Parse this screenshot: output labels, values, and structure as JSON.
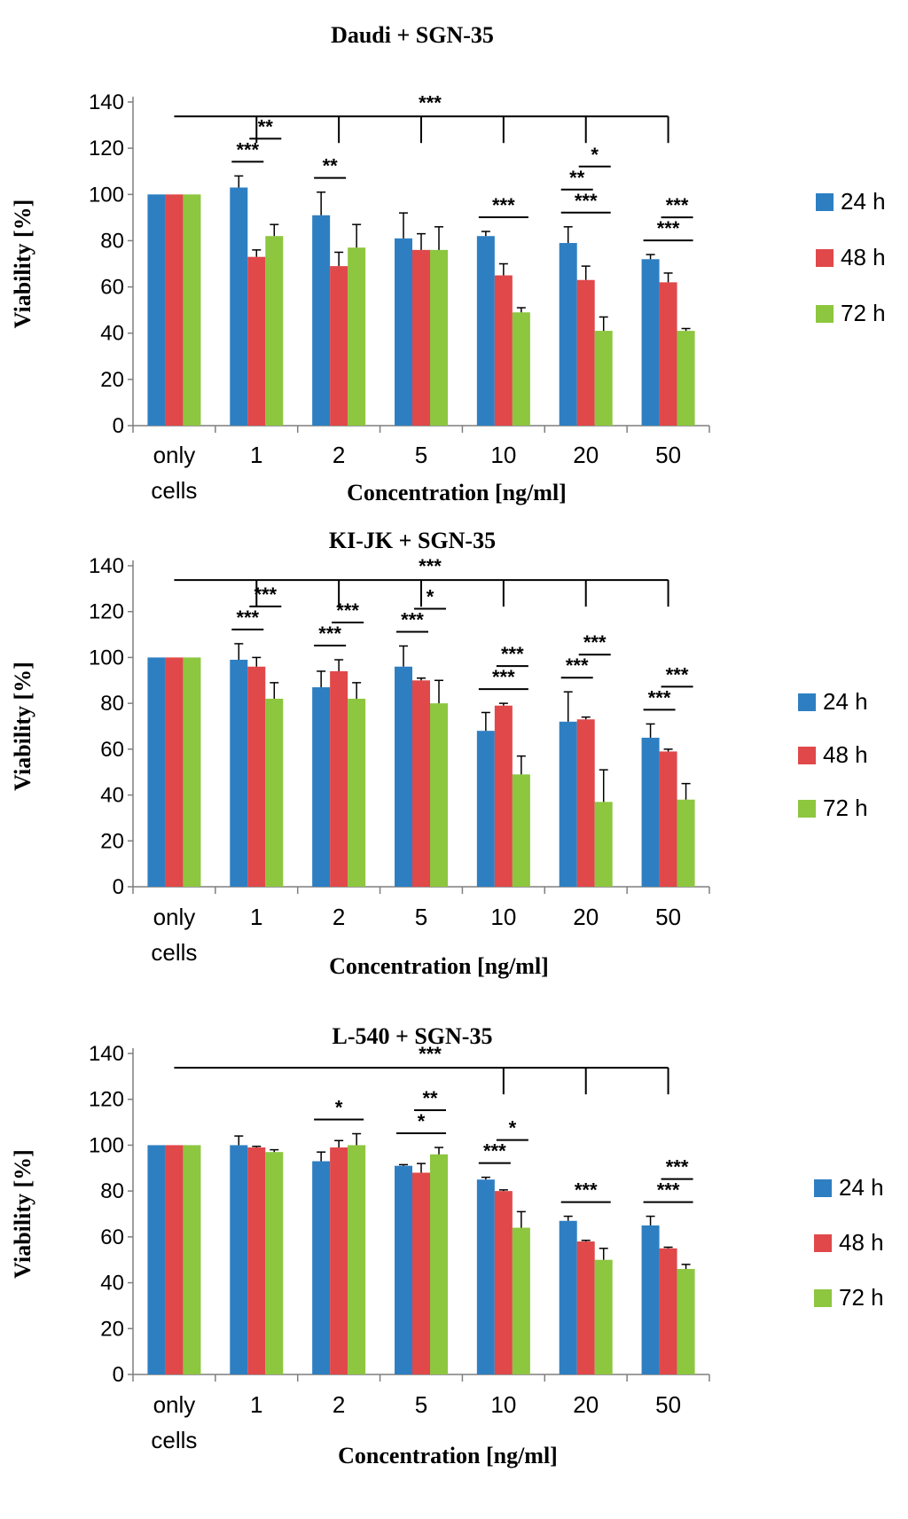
{
  "chart_data": [
    {
      "type": "bar",
      "title": "Daudi + SGN-35",
      "ylabel": "Viability [%]",
      "xlabel": "Concentration [ng/ml]",
      "ylim": [
        0,
        140
      ],
      "yticks": [
        "0",
        "20",
        "40",
        "60",
        "80",
        "100",
        "120",
        "140"
      ],
      "categories": [
        [
          "only",
          "cells"
        ],
        [
          "1"
        ],
        [
          "2"
        ],
        [
          "5"
        ],
        [
          "10"
        ],
        [
          "20"
        ],
        [
          "50"
        ]
      ],
      "series": [
        {
          "name": "24 h",
          "color": "#2e7fc2",
          "values": [
            100,
            103,
            91,
            81,
            82,
            79,
            72
          ],
          "errors": [
            0,
            5,
            10,
            11,
            2,
            7,
            2
          ]
        },
        {
          "name": "48 h",
          "color": "#e0484a",
          "values": [
            100,
            73,
            69,
            76,
            65,
            63,
            62
          ],
          "errors": [
            0,
            3,
            6,
            7,
            5,
            6,
            4
          ]
        },
        {
          "name": "72 h",
          "color": "#8dc63f",
          "values": [
            100,
            82,
            77,
            76,
            49,
            41,
            41
          ],
          "errors": [
            0,
            5,
            10,
            10,
            2,
            6,
            1
          ]
        }
      ],
      "annotations": [
        {
          "text": "***",
          "desc": "overall vs only cells"
        },
        {
          "text": "***",
          "cat": "1",
          "pair": "24h-48h"
        },
        {
          "text": "**",
          "cat": "1",
          "pair": "48h-72h"
        },
        {
          "text": "**",
          "cat": "2",
          "pair": "24h-48h"
        },
        {
          "text": "***",
          "cat": "10",
          "pair": "24h-72h"
        },
        {
          "text": "***",
          "cat": "20",
          "pair": "24h-72h"
        },
        {
          "text": "**",
          "cat": "20",
          "pair": "24h-48h"
        },
        {
          "text": "*",
          "cat": "20",
          "pair": "48h-72h"
        },
        {
          "text": "***",
          "cat": "50",
          "pair": "24h-72h"
        },
        {
          "text": "***",
          "cat": "50",
          "pair": "48h-72h"
        }
      ]
    },
    {
      "type": "bar",
      "title": "KI-JK + SGN-35",
      "ylabel": "Viability [%]",
      "xlabel": "Concentration [ng/ml]",
      "ylim": [
        0,
        140
      ],
      "yticks": [
        "0",
        "20",
        "40",
        "60",
        "80",
        "100",
        "120",
        "140"
      ],
      "categories": [
        [
          "only",
          "cells"
        ],
        [
          "1"
        ],
        [
          "2"
        ],
        [
          "5"
        ],
        [
          "10"
        ],
        [
          "20"
        ],
        [
          "50"
        ]
      ],
      "series": [
        {
          "name": "24 h",
          "color": "#2e7fc2",
          "values": [
            100,
            99,
            87,
            96,
            68,
            72,
            65
          ],
          "errors": [
            0,
            7,
            7,
            9,
            8,
            13,
            6
          ]
        },
        {
          "name": "48 h",
          "color": "#e0484a",
          "values": [
            100,
            96,
            94,
            90,
            79,
            73,
            59
          ],
          "errors": [
            0,
            4,
            5,
            1,
            1,
            1,
            1
          ]
        },
        {
          "name": "72 h",
          "color": "#8dc63f",
          "values": [
            100,
            82,
            82,
            80,
            49,
            37,
            38
          ],
          "errors": [
            0,
            7,
            7,
            10,
            8,
            14,
            7
          ]
        }
      ],
      "annotations": [
        {
          "text": "***",
          "desc": "overall vs only cells"
        },
        {
          "text": "***",
          "cat": "1",
          "pair": "24h-48h"
        },
        {
          "text": "***",
          "cat": "1",
          "pair": "48h-72h"
        },
        {
          "text": "***",
          "cat": "2",
          "pair": "24h-48h"
        },
        {
          "text": "***",
          "cat": "2",
          "pair": "48h-72h"
        },
        {
          "text": "***",
          "cat": "5",
          "pair": "24h-48h"
        },
        {
          "text": "*",
          "cat": "5",
          "pair": "48h-72h"
        },
        {
          "text": "***",
          "cat": "10",
          "pair": "24h-72h"
        },
        {
          "text": "***",
          "cat": "10",
          "pair": "48h-72h"
        },
        {
          "text": "***",
          "cat": "20",
          "pair": "24h-48h"
        },
        {
          "text": "***",
          "cat": "20",
          "pair": "48h-72h"
        },
        {
          "text": "***",
          "cat": "50",
          "pair": "24h-48h"
        },
        {
          "text": "***",
          "cat": "50",
          "pair": "48h-72h"
        }
      ]
    },
    {
      "type": "bar",
      "title": "L-540 + SGN-35",
      "ylabel": "Viability [%]",
      "xlabel": "Concentration [ng/ml]",
      "ylim": [
        0,
        140
      ],
      "yticks": [
        "0",
        "20",
        "40",
        "60",
        "80",
        "100",
        "120",
        "140"
      ],
      "categories": [
        [
          "only",
          "cells"
        ],
        [
          "1"
        ],
        [
          "2"
        ],
        [
          "5"
        ],
        [
          "10"
        ],
        [
          "20"
        ],
        [
          "50"
        ]
      ],
      "series": [
        {
          "name": "24 h",
          "color": "#2e7fc2",
          "values": [
            100,
            100,
            93,
            91,
            85,
            67,
            65
          ],
          "errors": [
            0,
            4,
            4,
            0.5,
            1,
            2,
            4
          ]
        },
        {
          "name": "48 h",
          "color": "#e0484a",
          "values": [
            100,
            99,
            99,
            88,
            80,
            58,
            55
          ],
          "errors": [
            0,
            0.5,
            3,
            4,
            0.5,
            0.5,
            0.5
          ]
        },
        {
          "name": "72 h",
          "color": "#8dc63f",
          "values": [
            100,
            97,
            100,
            96,
            64,
            50,
            46
          ],
          "errors": [
            0,
            1,
            5,
            3,
            7,
            5,
            2
          ]
        }
      ],
      "annotations": [
        {
          "text": "***",
          "desc": "overall vs only cells"
        },
        {
          "text": "*",
          "cat": "2",
          "pair": "24h-72h"
        },
        {
          "text": "*",
          "cat": "5",
          "pair": "24h-72h"
        },
        {
          "text": "**",
          "cat": "5",
          "pair": "48h-72h"
        },
        {
          "text": "***",
          "cat": "10",
          "pair": "24h-48h"
        },
        {
          "text": "*",
          "cat": "10",
          "pair": "48h-72h"
        },
        {
          "text": "***",
          "cat": "20",
          "pair": "24h-72h"
        },
        {
          "text": "***",
          "cat": "50",
          "pair": "24h-72h"
        },
        {
          "text": "***",
          "cat": "50",
          "pair": "48h-72h"
        }
      ]
    }
  ]
}
